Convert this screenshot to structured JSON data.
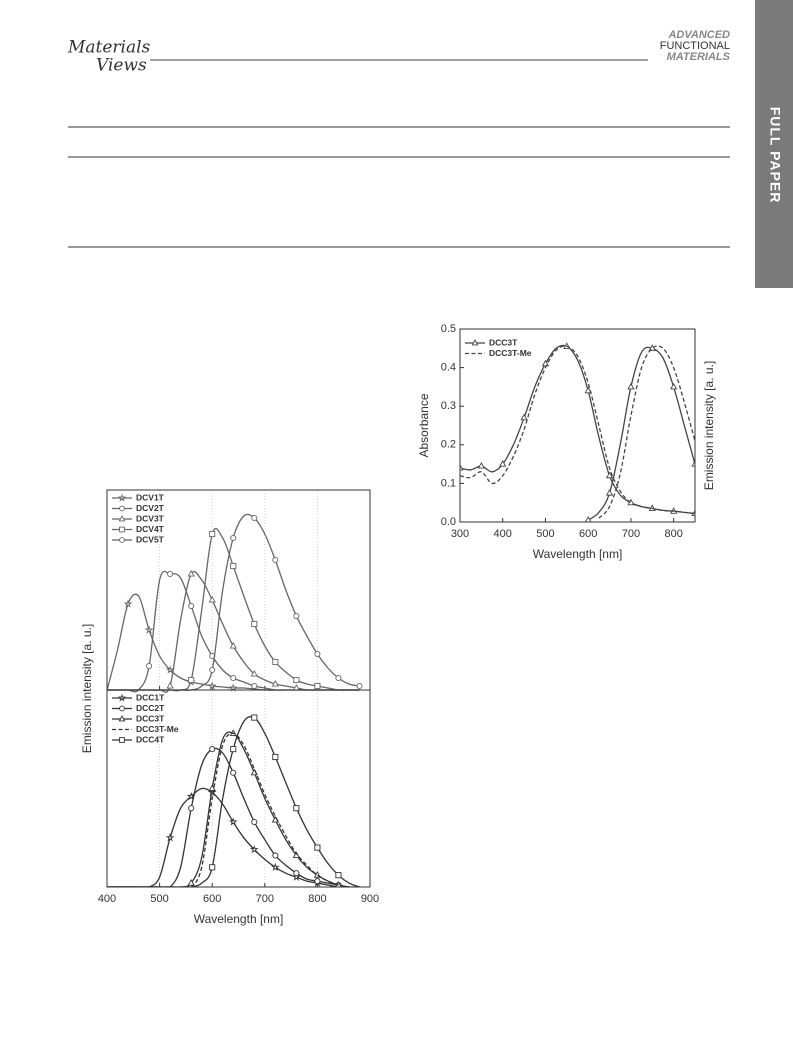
{
  "header": {
    "logo": [
      "Materials",
      "Views"
    ],
    "journal": [
      "ADVANCED",
      "FUNCTIONAL",
      "MATERIALS"
    ],
    "section": "FULL PAPER"
  },
  "chart_data": [
    {
      "type": "line",
      "xlabel": "Wavelength [nm]",
      "ylabel": "Emission intensity [a. u.]",
      "xlim": [
        400,
        900
      ],
      "xticks": [
        400,
        500,
        600,
        700,
        800,
        900
      ],
      "grid": true,
      "x": [
        400,
        420,
        440,
        460,
        480,
        500,
        520,
        540,
        560,
        580,
        600,
        620,
        640,
        660,
        680,
        700,
        720,
        740,
        760,
        780,
        800,
        820,
        840,
        860,
        880
      ],
      "panels": [
        {
          "ylim": [
            0,
            1
          ],
          "series": [
            {
              "name": "DCV1T",
              "color": "#666666",
              "marker": "star",
              "values": [
                0,
                0.2,
                0.43,
                0.47,
                0.3,
                0.17,
                0.1,
                0.06,
                0.04,
                0.03,
                0.02,
                0.015,
                0.01,
                0.01,
                0.005,
                0,
                0,
                0,
                0,
                0,
                0,
                0,
                0,
                0,
                0
              ]
            },
            {
              "name": "DCV2T",
              "color": "#666666",
              "marker": "circle",
              "values": [
                0,
                0,
                0,
                0,
                0.12,
                0.55,
                0.58,
                0.56,
                0.42,
                0.27,
                0.17,
                0.1,
                0.06,
                0.04,
                0.02,
                0.01,
                0,
                0,
                0,
                0,
                0,
                0,
                0,
                0,
                0
              ]
            },
            {
              "name": "DCV3T",
              "color": "#666666",
              "marker": "triangle",
              "values": [
                0,
                0,
                0,
                0,
                0,
                0,
                0.02,
                0.35,
                0.58,
                0.55,
                0.45,
                0.33,
                0.22,
                0.14,
                0.08,
                0.05,
                0.03,
                0.02,
                0.01,
                0,
                0,
                0,
                0,
                0,
                0
              ]
            },
            {
              "name": "DCV4T",
              "color": "#666666",
              "marker": "square",
              "values": [
                0,
                0,
                0,
                0,
                0,
                0,
                0,
                0,
                0.05,
                0.4,
                0.78,
                0.76,
                0.62,
                0.47,
                0.33,
                0.22,
                0.14,
                0.09,
                0.05,
                0.03,
                0.02,
                0.01,
                0,
                0,
                0
              ]
            },
            {
              "name": "DCV5T",
              "color": "#666666",
              "marker": "circle",
              "values": [
                0,
                0,
                0,
                0,
                0,
                0,
                0,
                0,
                0,
                0.02,
                0.1,
                0.5,
                0.76,
                0.87,
                0.86,
                0.78,
                0.65,
                0.5,
                0.37,
                0.27,
                0.18,
                0.11,
                0.06,
                0.03,
                0.02
              ]
            }
          ]
        },
        {
          "ylim": [
            0,
            1
          ],
          "series": [
            {
              "name": "DCC1T",
              "color": "#333333",
              "marker": "star",
              "values": [
                0,
                0,
                0,
                0,
                0,
                0.05,
                0.25,
                0.4,
                0.46,
                0.5,
                0.48,
                0.42,
                0.33,
                0.25,
                0.19,
                0.14,
                0.1,
                0.07,
                0.05,
                0.03,
                0.02,
                0.01,
                0,
                0,
                0
              ]
            },
            {
              "name": "DCC2T",
              "color": "#333333",
              "marker": "circle",
              "values": [
                0,
                0,
                0,
                0,
                0,
                0,
                0,
                0.1,
                0.4,
                0.62,
                0.7,
                0.68,
                0.58,
                0.45,
                0.33,
                0.24,
                0.16,
                0.11,
                0.07,
                0.04,
                0.03,
                0.02,
                0.01,
                0,
                0
              ]
            },
            {
              "name": "DCC3T",
              "color": "#333333",
              "marker": "triangle",
              "values": [
                0,
                0,
                0,
                0,
                0,
                0,
                0,
                0,
                0.02,
                0.15,
                0.5,
                0.75,
                0.78,
                0.7,
                0.58,
                0.45,
                0.34,
                0.24,
                0.16,
                0.1,
                0.06,
                0.03,
                0.01,
                0,
                0
              ]
            },
            {
              "name": "DCC3T-Me",
              "color": "#333333",
              "marker": "none",
              "dash": true,
              "values": [
                0,
                0,
                0,
                0,
                0,
                0,
                0,
                0,
                0,
                0.1,
                0.45,
                0.72,
                0.78,
                0.72,
                0.6,
                0.47,
                0.36,
                0.26,
                0.17,
                0.11,
                0.06,
                0.03,
                0.01,
                0,
                0
              ]
            },
            {
              "name": "DCC4T",
              "color": "#333333",
              "marker": "square",
              "values": [
                0,
                0,
                0,
                0,
                0,
                0,
                0,
                0,
                0,
                0.02,
                0.1,
                0.45,
                0.7,
                0.84,
                0.86,
                0.78,
                0.66,
                0.53,
                0.4,
                0.29,
                0.2,
                0.12,
                0.06,
                0.02,
                0
              ]
            }
          ]
        }
      ]
    },
    {
      "type": "line",
      "xlabel": "Wavelength [nm]",
      "ylabel": "Absorbance",
      "y2label": "Emission intensity [a. u.]",
      "xlim": [
        300,
        850
      ],
      "xticks": [
        300,
        400,
        500,
        600,
        700,
        800
      ],
      "ylim": [
        0,
        0.5
      ],
      "yticks": [
        {
          "value": 0,
          "label": "0.0"
        },
        0.1,
        0.2,
        0.3,
        0.4,
        0.5
      ],
      "y2lim": [
        0,
        1
      ],
      "x": [
        300,
        325,
        350,
        375,
        400,
        425,
        450,
        475,
        500,
        525,
        550,
        575,
        600,
        625,
        650,
        675,
        700,
        725,
        750,
        775,
        800,
        825,
        850
      ],
      "series": [
        {
          "name": "DCC3T",
          "color": "#444444",
          "marker": "triangle",
          "values": [
            0.14,
            0.135,
            0.145,
            0.13,
            0.15,
            0.2,
            0.27,
            0.35,
            0.41,
            0.45,
            0.455,
            0.42,
            0.34,
            0.22,
            0.12,
            0.07,
            0.05,
            0.04,
            0.035,
            0.03,
            0.028,
            0.025,
            0.022
          ]
        },
        {
          "name": "DCC3T-Me",
          "color": "#444444",
          "marker": "none",
          "dash": true,
          "values": [
            0.12,
            0.115,
            0.13,
            0.1,
            0.12,
            0.17,
            0.24,
            0.33,
            0.4,
            0.445,
            0.455,
            0.43,
            0.36,
            0.25,
            0.14,
            0.08,
            0.05,
            0.04,
            0.035,
            0.03,
            0.028,
            0.025,
            0.022
          ]
        },
        {
          "color": "#444444",
          "marker": "triangle",
          "axis": "y2",
          "values": [
            null,
            null,
            null,
            null,
            null,
            null,
            null,
            null,
            null,
            null,
            null,
            null,
            0.01,
            0.05,
            0.15,
            0.4,
            0.7,
            0.88,
            0.9,
            0.85,
            0.7,
            0.5,
            0.3
          ]
        },
        {
          "color": "#444444",
          "marker": "none",
          "dash": true,
          "axis": "y2",
          "values": [
            null,
            null,
            null,
            null,
            null,
            null,
            null,
            null,
            null,
            null,
            null,
            null,
            null,
            0.02,
            0.08,
            0.25,
            0.55,
            0.8,
            0.9,
            0.9,
            0.8,
            0.62,
            0.42
          ]
        }
      ]
    }
  ]
}
